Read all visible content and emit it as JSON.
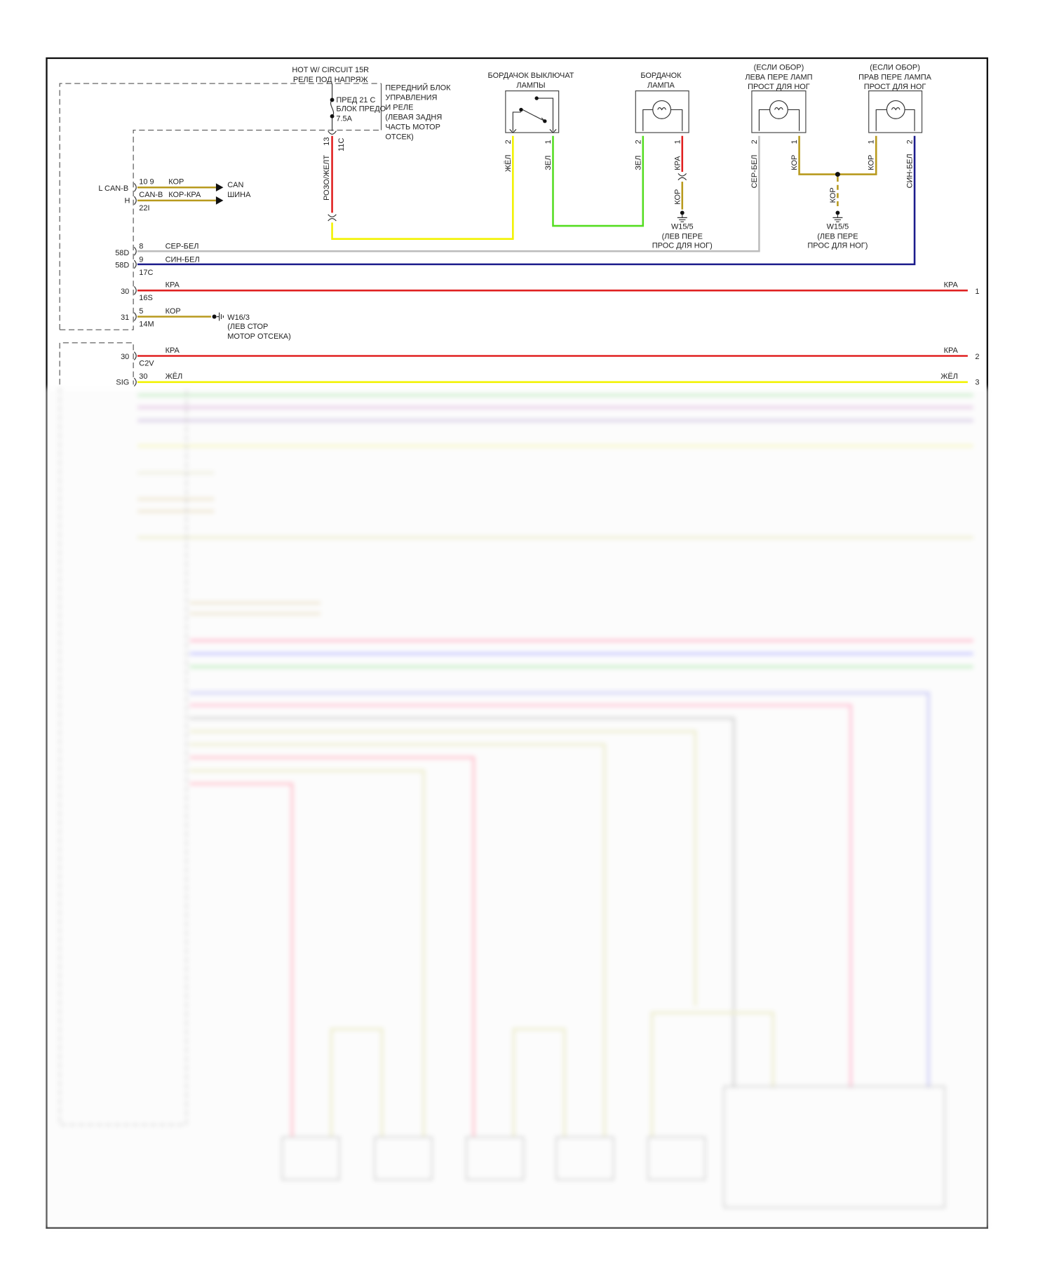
{
  "colors": {
    "red": "#e02020",
    "yellow": "#f2f200",
    "green": "#55dd22",
    "brown": "#b89a1e",
    "gray": "#bdbdbd",
    "blue": "#1c1c8c",
    "frame": "#111111"
  },
  "fuse_block": {
    "hot_title": "HOT W/ CIRCUIT 15R",
    "hot_subtitle": "РЕЛЕ ПОД НАПРЯЖ",
    "fuse_line1": "ПРЕД 21 С",
    "fuse_line2": "БЛОК ПРЕДО",
    "fuse_rating": "7.5A",
    "module_lines": [
      "ПЕРЕДНИЙ БЛОК",
      "УПРАВЛЕНИЯ",
      "И РЕЛЕ",
      "(ЛЕВАЯ ЗАДНЯ",
      "ЧАСТЬ МОТОР",
      "ОТСЕК)"
    ],
    "pin_top": "13",
    "pin_conn": "11C",
    "wire_color": "РОЗО/ЖЕЛТ"
  },
  "components": {
    "switch": {
      "title1": "БОРДАЧОК ВЫКЛЮЧАТ",
      "title2": "ЛАМПЫ",
      "pin_left": "2",
      "pin_right": "1",
      "wire_left": "ЖЁЛ",
      "wire_right": "ЗЕЛ"
    },
    "lamp": {
      "title1": "БОРДАЧОК",
      "title2": "ЛАМПА",
      "pin_left": "2",
      "pin_right": "1",
      "wire_left": "ЗЕЛ",
      "wire_right": "КРА",
      "wire_ground": "КОР",
      "ground": [
        "W15/5",
        "(ЛЕВ ПЕРЕ",
        "ПРОС ДЛЯ НОГ)"
      ]
    },
    "left_foot_lamp": {
      "title1": "(ЕСЛИ ОБОР)",
      "title2": "ЛЕВА ПЕРЕ ЛАМП",
      "title3": "ПРОСТ ДЛЯ НОГ",
      "pin_left": "2",
      "pin_right": "1",
      "wire_left": "СЕР-БЕЛ",
      "wire_right": "КОР"
    },
    "right_foot_lamp": {
      "title1": "(ЕСЛИ ОБОР)",
      "title2": "ПРАВ ПЕРЕ ЛАМПА",
      "title3": "ПРОСТ ДЛЯ НОГ",
      "pin_left": "1",
      "pin_right": "2",
      "wire_left": "КОР",
      "wire_right": "СИН-БЕЛ"
    },
    "foot_ground": {
      "wire": "КОР",
      "lines": [
        "W15/5",
        "(ЛЕВ ПЕРЕ",
        "ПРОС ДЛЯ НОГ)"
      ]
    }
  },
  "module": {
    "can": {
      "l_label": "L CAN-B",
      "h_label": "H",
      "l_pins": "10 9",
      "l_wire": "КОР",
      "h_pins": "CAN-B",
      "h_wire": "КОР-КРА",
      "h_conn": "22I",
      "target1": "CAN",
      "target2": "ШИНА"
    },
    "rows": [
      {
        "pin": "58D",
        "num": "8",
        "wire": "СЕР-БЕЛ"
      },
      {
        "pin": "58D",
        "num": "9",
        "wire": "СИН-БЕЛ",
        "conn": "17C"
      },
      {
        "pin": "30",
        "wire": "КРА",
        "conn": "16S",
        "right_wire": "КРА",
        "ref": "1"
      },
      {
        "pin": "31",
        "num": "5",
        "wire": "КОР",
        "conn": "14M",
        "ground": [
          "W16/3",
          "(ЛЕВ СТОР",
          "МОТОР ОТСЕКА)"
        ]
      }
    ],
    "rows2": [
      {
        "pin": "30",
        "wire": "КРА",
        "conn": "C2V",
        "right_wire": "КРА",
        "ref": "2"
      },
      {
        "pin": "SIG",
        "num": "30",
        "wire": "ЖЁЛ",
        "right_wire": "ЖЁЛ",
        "ref": "3"
      }
    ]
  }
}
